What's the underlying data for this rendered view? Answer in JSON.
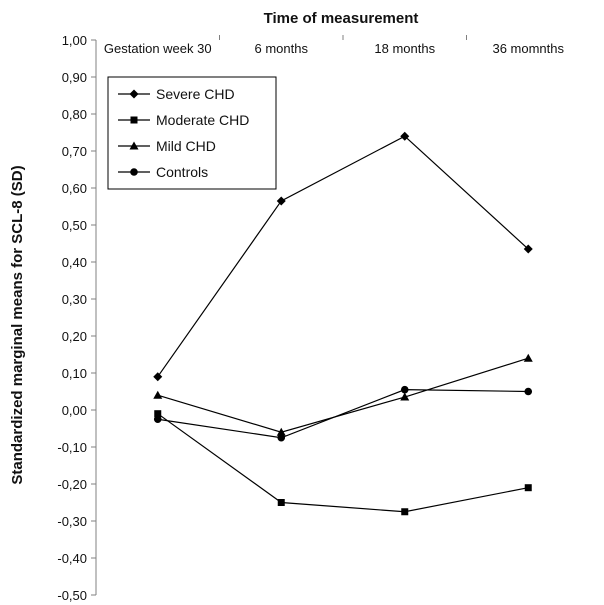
{
  "chart_data": {
    "type": "line",
    "xlabel": "Time of measurement",
    "ylabel": "Standardized marginal means for SCL-8 (SD)",
    "categories": [
      "Gestation week 30",
      "6 months",
      "18 months",
      "36 momnths"
    ],
    "ylim": [
      -0.5,
      1.0
    ],
    "yticks": [
      1.0,
      0.9,
      0.8,
      0.7,
      0.6,
      0.5,
      0.4,
      0.3,
      0.2,
      0.1,
      0.0,
      -0.1,
      -0.2,
      -0.3,
      -0.4,
      -0.5
    ],
    "ytick_labels": [
      "1,00",
      "0,90",
      "0,80",
      "0,70",
      "0,60",
      "0,50",
      "0,40",
      "0,30",
      "0,20",
      "0,10",
      "0,00",
      "-0,10",
      "-0,20",
      "-0,30",
      "-0,40",
      "-0,50"
    ],
    "x_axis_position": "top",
    "grid": false,
    "legend_position": "top-left",
    "series": [
      {
        "name": "Severe CHD",
        "marker": "diamond",
        "values": [
          0.09,
          0.565,
          0.74,
          0.435
        ]
      },
      {
        "name": "Moderate CHD",
        "marker": "square",
        "values": [
          -0.01,
          -0.25,
          -0.275,
          -0.21
        ]
      },
      {
        "name": "Mild CHD",
        "marker": "triangle",
        "values": [
          0.04,
          -0.06,
          0.035,
          0.14
        ]
      },
      {
        "name": "Controls",
        "marker": "circle",
        "values": [
          -0.025,
          -0.075,
          0.055,
          0.05
        ]
      }
    ],
    "colors": {
      "line": "#000000",
      "axis": "#808080",
      "text": "#111111"
    }
  }
}
